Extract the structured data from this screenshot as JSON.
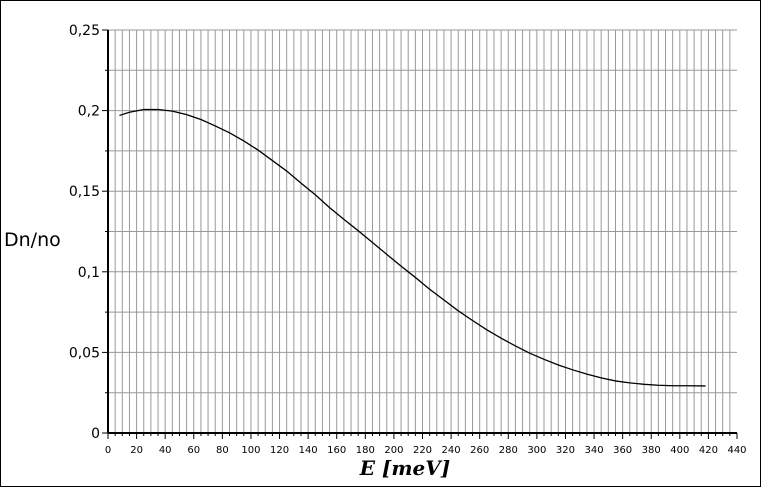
{
  "chart_data": {
    "type": "line",
    "title": "",
    "xlabel": "E [meV]",
    "ylabel": "Dn/no",
    "xlim": [
      0,
      440
    ],
    "ylim": [
      0,
      0.25
    ],
    "x_ticks": [
      0,
      20,
      40,
      60,
      80,
      100,
      120,
      140,
      160,
      180,
      200,
      220,
      240,
      260,
      280,
      300,
      320,
      340,
      360,
      380,
      400,
      420,
      440
    ],
    "x_tick_labels": [
      "0",
      "20",
      "40",
      "60",
      "80",
      "100",
      "120",
      "140",
      "160",
      "180",
      "200",
      "220",
      "240",
      "260",
      "280",
      "300",
      "320",
      "340",
      "360",
      "380",
      "400",
      "420",
      "440"
    ],
    "y_ticks": [
      0,
      0.05,
      0.1,
      0.15,
      0.2,
      0.25
    ],
    "y_tick_labels": [
      "0",
      "0,05",
      "0,1",
      "0,15",
      "0,2",
      "0,25"
    ],
    "grid": true,
    "legend": "none",
    "line_color": "#000000",
    "grid_color": "#999999",
    "series": [
      {
        "x": [
          8,
          15,
          25,
          35,
          45,
          55,
          65,
          75,
          85,
          95,
          105,
          115,
          125,
          135,
          145,
          155,
          165,
          175,
          185,
          195,
          205,
          215,
          225,
          235,
          245,
          255,
          265,
          275,
          285,
          295,
          305,
          315,
          325,
          335,
          345,
          355,
          365,
          375,
          385,
          395,
          405,
          418
        ],
        "y": [
          0.197,
          0.199,
          0.2007,
          0.2007,
          0.1997,
          0.1975,
          0.1945,
          0.1905,
          0.1862,
          0.1812,
          0.1755,
          0.169,
          0.1625,
          0.155,
          0.1478,
          0.1398,
          0.1325,
          0.1255,
          0.1182,
          0.1108,
          0.1035,
          0.0965,
          0.0892,
          0.0825,
          0.0758,
          0.0698,
          0.064,
          0.0588,
          0.054,
          0.0495,
          0.0457,
          0.0422,
          0.0392,
          0.0365,
          0.0342,
          0.0323,
          0.0311,
          0.0302,
          0.0296,
          0.0293,
          0.0293,
          0.0292
        ]
      }
    ]
  }
}
